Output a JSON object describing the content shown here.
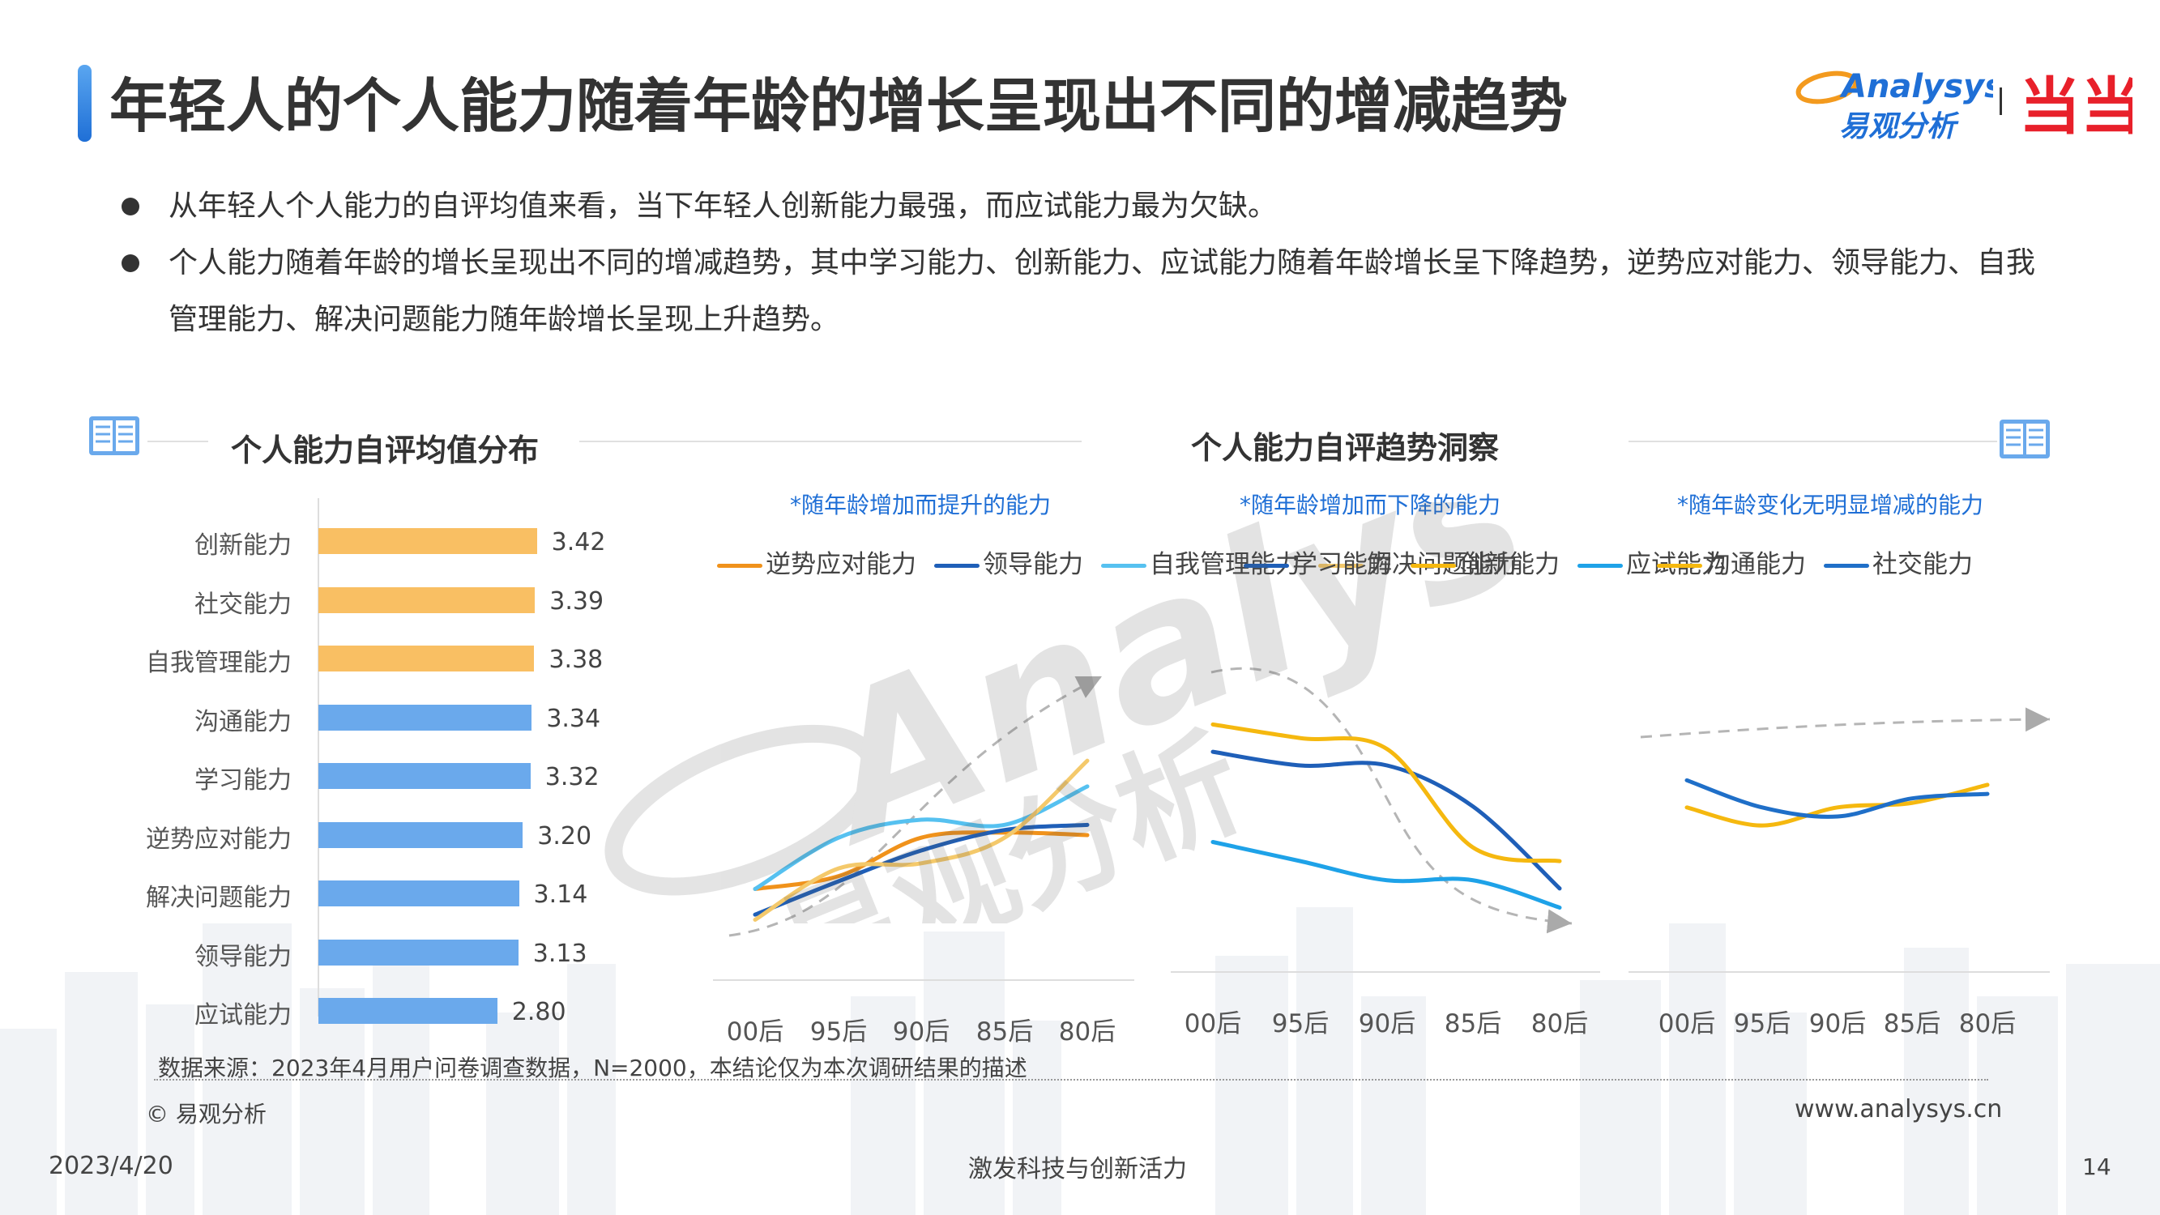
{
  "header": {
    "title": "年轻人的个人能力随着年龄的增长呈现出不同的增减趋势",
    "logo_text": "Analysys",
    "logo_cn": "易观分析",
    "partner_logo": "当当"
  },
  "bullets": [
    "从年轻人个人能力的自评均值来看，当下年轻人创新能力最强，而应试能力最为欠缺。",
    "个人能力随着年龄的增长呈现出不同的增减趋势，其中学习能力、创新能力、应试能力随着年龄增长呈下降趋势，逆势应对能力、领导能力、自我管理能力、解决问题能力随年龄增长呈现上升趋势。"
  ],
  "sections": {
    "left_title": "个人能力自评均值分布",
    "right_title": "个人能力自评趋势洞察"
  },
  "chart_data": [
    {
      "type": "bar",
      "orientation": "horizontal",
      "title": "个人能力自评均值分布",
      "categories": [
        "创新能力",
        "社交能力",
        "自我管理能力",
        "沟通能力",
        "学习能力",
        "逆势应对能力",
        "解决问题能力",
        "领导能力",
        "应试能力"
      ],
      "values": [
        3.42,
        3.39,
        3.38,
        3.34,
        3.32,
        3.2,
        3.14,
        3.13,
        2.8
      ],
      "value_labels": [
        "3.42",
        "3.39",
        "3.38",
        "3.34",
        "3.32",
        "3.20",
        "3.14",
        "3.13",
        "2.80"
      ],
      "bar_colors": [
        "#f9bf63",
        "#f9bf63",
        "#f9bf63",
        "#6aa9ec",
        "#6aa9ec",
        "#6aa9ec",
        "#6aa9ec",
        "#6aa9ec",
        "#6aa9ec"
      ],
      "xlim": [
        0,
        3.45
      ]
    },
    {
      "type": "line",
      "subtitle": "*随年龄增加而提升的能力",
      "categories": [
        "00后",
        "95后",
        "90后",
        "85后",
        "80后"
      ],
      "series": [
        {
          "name": "逆势应对能力",
          "color": "#f0921b",
          "values": [
            3.05,
            3.1,
            3.25,
            3.27,
            3.26
          ]
        },
        {
          "name": "领导能力",
          "color": "#1f5fb8",
          "values": [
            2.95,
            3.08,
            3.2,
            3.28,
            3.3
          ]
        },
        {
          "name": "自我管理能力",
          "color": "#56c1f0",
          "values": [
            3.05,
            3.25,
            3.32,
            3.3,
            3.45
          ]
        },
        {
          "name": "解决问题能力",
          "color": "#f4c96b",
          "values": [
            2.93,
            3.13,
            3.15,
            3.25,
            3.55
          ]
        }
      ],
      "ylim": [
        2.6,
        3.8
      ],
      "trend_arrow": "up"
    },
    {
      "type": "line",
      "subtitle": "*随年龄增加而下降的能力",
      "categories": [
        "00后",
        "95后",
        "90后",
        "85后",
        "80后"
      ],
      "series": [
        {
          "name": "学习能力",
          "color": "#1f5fb8",
          "values": [
            3.45,
            3.4,
            3.4,
            3.25,
            2.95
          ]
        },
        {
          "name": "创新能力",
          "color": "#f5b80f",
          "values": [
            3.55,
            3.5,
            3.46,
            3.1,
            3.05
          ]
        },
        {
          "name": "应试能力",
          "color": "#1ea2e8",
          "values": [
            3.12,
            3.05,
            2.98,
            2.98,
            2.88
          ]
        }
      ],
      "ylim": [
        2.6,
        3.8
      ],
      "trend_arrow": "down"
    },
    {
      "type": "line",
      "subtitle": "*随年龄变化无明显增减的能力",
      "categories": [
        "00后",
        "95后",
        "90后",
        "85后",
        "80后"
      ],
      "series": [
        {
          "name": "沟通能力",
          "color": "#f5b80f",
          "values": [
            3.34,
            3.3,
            3.34,
            3.35,
            3.39
          ]
        },
        {
          "name": "社交能力",
          "color": "#1f6fc8",
          "values": [
            3.4,
            3.34,
            3.32,
            3.36,
            3.37
          ]
        }
      ],
      "ylim": [
        2.6,
        3.8
      ],
      "trend_arrow": "flat"
    }
  ],
  "footer": {
    "source": "数据来源：2023年4月用户问卷调查数据，N=2000，本结论仅为本次调研结果的描述",
    "copyright": "© 易观分析",
    "website": "www.analysys.cn",
    "date": "2023/4/20",
    "slogan": "激发科技与创新活力",
    "page": "14"
  },
  "watermark": "易观分析",
  "colors": {
    "accent": "#1f6fd6",
    "orange": "#f9bf63",
    "blue": "#6aa9ec"
  }
}
